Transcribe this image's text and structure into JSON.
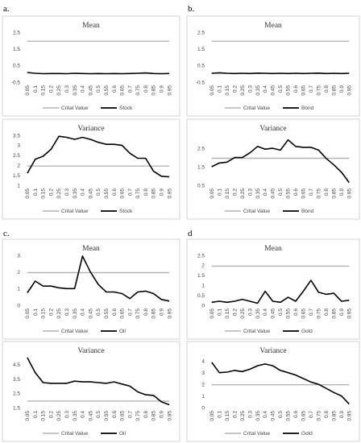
{
  "panels": [
    {
      "label": "a."
    },
    {
      "label": "b."
    },
    {
      "label": "c."
    },
    {
      "label": "d"
    }
  ],
  "colors": {
    "critical": "#b4b4b4",
    "series": "#000000",
    "border": "#c8c8c8"
  },
  "chart_data": [
    {
      "type": "line",
      "panel": "a.",
      "title": "Mean",
      "x": [
        "0.05",
        "0.1",
        "0.15",
        "0.2",
        "0.25",
        "0.3",
        "0.35",
        "0.4",
        "0.45",
        "0.5",
        "0.55",
        "0.6",
        "0.65",
        "0.7",
        "0.75",
        "0.8",
        "0.85",
        "0.9",
        "0.95"
      ],
      "yticks": [
        "-0.5",
        "0.5",
        "1.5",
        "2.5"
      ],
      "ylim": [
        -0.5,
        2.5
      ],
      "series": [
        {
          "name": "Critical Value",
          "legend": "Crital Value",
          "values": [
            1.96,
            1.96,
            1.96,
            1.96,
            1.96,
            1.96,
            1.96,
            1.96,
            1.96,
            1.96,
            1.96,
            1.96,
            1.96,
            1.96,
            1.96,
            1.96,
            1.96,
            1.96,
            1.96
          ]
        },
        {
          "name": "Stock",
          "legend": "Stock",
          "values": [
            0.08,
            0.03,
            0.01,
            0.02,
            0.02,
            0.01,
            0.03,
            0.02,
            0.01,
            0.02,
            0.01,
            0.02,
            0.01,
            0.02,
            0.03,
            0.05,
            0.02,
            0.01,
            0.02
          ]
        }
      ],
      "legend_position": "bottom"
    },
    {
      "type": "line",
      "panel": "b.",
      "title": "Mean",
      "x": [
        "0.05",
        "0.1",
        "0.15",
        "0.2",
        "0.25",
        "0.3",
        "0.35",
        "0.4",
        "0.45",
        "0.5",
        "0.55",
        "0.6",
        "0.65",
        "0.7",
        "0.75",
        "0.8",
        "0.85",
        "0.9",
        "0.95"
      ],
      "yticks": [
        "-0.5",
        "0.5",
        "1.5",
        "2.5"
      ],
      "ylim": [
        -0.5,
        2.5
      ],
      "series": [
        {
          "name": "Critical Value",
          "legend": "Crital Value",
          "values": [
            1.96,
            1.96,
            1.96,
            1.96,
            1.96,
            1.96,
            1.96,
            1.96,
            1.96,
            1.96,
            1.96,
            1.96,
            1.96,
            1.96,
            1.96,
            1.96,
            1.96,
            1.96,
            1.96
          ]
        },
        {
          "name": "Bond",
          "legend": "Bond",
          "values": [
            0.03,
            0.06,
            0.03,
            0.02,
            0.03,
            0.02,
            0.04,
            0.03,
            0.02,
            0.03,
            0.02,
            0.03,
            0.02,
            0.03,
            0.04,
            0.02,
            0.03,
            0.02,
            0.03
          ]
        }
      ],
      "legend_position": "bottom"
    },
    {
      "type": "line",
      "panel": "a.",
      "title": "Variance",
      "x": [
        "0.05",
        "0.1",
        "0.15",
        "0.2",
        "0.25",
        "0.3",
        "0.35",
        "0.4",
        "0.45",
        "0.5",
        "0.55",
        "0.6",
        "0.65",
        "0.7",
        "0.75",
        "0.8",
        "0.85",
        "0.9",
        "0.95"
      ],
      "yticks": [
        "1",
        "1.5",
        "2",
        "2.5",
        "3",
        "3.5"
      ],
      "ylim": [
        1,
        3.5
      ],
      "series": [
        {
          "name": "Critical Value",
          "legend": "Crital Value",
          "values": [
            1.96,
            1.96,
            1.96,
            1.96,
            1.96,
            1.96,
            1.96,
            1.96,
            1.96,
            1.96,
            1.96,
            1.96,
            1.96,
            1.96,
            1.96,
            1.96,
            1.96,
            1.96,
            1.96
          ]
        },
        {
          "name": "Stock",
          "legend": "Stock",
          "values": [
            1.6,
            2.3,
            2.45,
            2.8,
            3.45,
            3.4,
            3.3,
            3.4,
            3.3,
            3.15,
            3.05,
            3.05,
            3.0,
            2.6,
            2.35,
            2.35,
            1.7,
            1.45,
            1.42
          ]
        }
      ],
      "legend_position": "bottom"
    },
    {
      "type": "line",
      "panel": "b.",
      "title": "Variance",
      "x": [
        "0.05",
        "0.1",
        "0.15",
        "0.2",
        "0.25",
        "0.3",
        "0.35",
        "0.4",
        "0.45",
        "0.5",
        "0.55",
        "0.6",
        "0.65",
        "0.7",
        "0.75",
        "0.8",
        "0.85",
        "0.9",
        "0.95"
      ],
      "yticks": [
        "0.5",
        "1.5",
        "2.5"
      ],
      "ylim": [
        0.5,
        3.2
      ],
      "series": [
        {
          "name": "Critical Value",
          "legend": "Crital Value",
          "values": [
            1.96,
            1.96,
            1.96,
            1.96,
            1.96,
            1.96,
            1.96,
            1.96,
            1.96,
            1.96,
            1.96,
            1.96,
            1.96,
            1.96,
            1.96,
            1.96,
            1.96,
            1.96,
            1.96
          ]
        },
        {
          "name": "Bond",
          "legend": "Bond",
          "values": [
            1.5,
            1.7,
            1.75,
            2.0,
            2.0,
            2.25,
            2.6,
            2.45,
            2.5,
            2.4,
            2.95,
            2.6,
            2.55,
            2.55,
            2.4,
            1.95,
            1.6,
            1.2,
            0.65
          ]
        }
      ],
      "legend_position": "bottom"
    },
    {
      "type": "line",
      "panel": "c.",
      "title": "Mean",
      "x": [
        "0.05",
        "0.1",
        "0.15",
        "0.2",
        "0.25",
        "0.3",
        "0.35",
        "0.4",
        "0.45",
        "0.5",
        "0.55",
        "0.6",
        "0.65",
        "0.7",
        "0.75",
        "0.8",
        "0.85",
        "0.9",
        "0.95"
      ],
      "yticks": [
        "0",
        "1",
        "2",
        "3"
      ],
      "ylim": [
        0,
        3
      ],
      "series": [
        {
          "name": "Critical Value",
          "legend": "Crital Value",
          "values": [
            1.96,
            1.96,
            1.96,
            1.96,
            1.96,
            1.96,
            1.96,
            1.96,
            1.96,
            1.96,
            1.96,
            1.96,
            1.96,
            1.96,
            1.96,
            1.96,
            1.96,
            1.96,
            1.96
          ]
        },
        {
          "name": "Oil",
          "legend": "Oil",
          "values": [
            0.75,
            1.45,
            1.15,
            1.15,
            1.05,
            1.0,
            1.0,
            2.95,
            2.0,
            1.25,
            0.8,
            0.8,
            0.7,
            0.4,
            0.8,
            0.85,
            0.7,
            0.35,
            0.25
          ]
        }
      ],
      "legend_position": "bottom"
    },
    {
      "type": "line",
      "panel": "d",
      "title": "Mean",
      "x": [
        "0.05",
        "0.1",
        "0.15",
        "0.2",
        "0.25",
        "0.3",
        "0.35",
        "0.4",
        "0.45",
        "0.5",
        "0.55",
        "0.6",
        "0.65",
        "0.7",
        "0.75",
        "0.8",
        "0.85",
        "0.9",
        "0.95"
      ],
      "yticks": [
        "0",
        "0.5",
        "1",
        "1.5",
        "2",
        "2.5"
      ],
      "ylim": [
        0,
        2.5
      ],
      "series": [
        {
          "name": "Critical Value",
          "legend": "Crital Value",
          "values": [
            1.96,
            1.96,
            1.96,
            1.96,
            1.96,
            1.96,
            1.96,
            1.96,
            1.96,
            1.96,
            1.96,
            1.96,
            1.96,
            1.96,
            1.96,
            1.96,
            1.96,
            1.96,
            1.96
          ]
        },
        {
          "name": "Gold",
          "legend": "Gold",
          "values": [
            0.15,
            0.2,
            0.15,
            0.2,
            0.3,
            0.2,
            0.1,
            0.7,
            0.2,
            0.15,
            0.4,
            0.2,
            0.7,
            1.25,
            0.65,
            0.55,
            0.6,
            0.2,
            0.25
          ]
        }
      ],
      "legend_position": "bottom"
    },
    {
      "type": "line",
      "panel": "c.",
      "title": "Variance",
      "x": [
        "0.05",
        "0.1",
        "0.15",
        "0.2",
        "0.25",
        "0.3",
        "0.35",
        "0.4",
        "0.45",
        "0.5",
        "0.55",
        "0.6",
        "0.65",
        "0.7",
        "0.75",
        "0.8",
        "0.85",
        "0.9",
        "0.95"
      ],
      "yticks": [
        "1.5",
        "2.5",
        "3.5",
        "4.5"
      ],
      "ylim": [
        1.5,
        5
      ],
      "series": [
        {
          "name": "Critical Value",
          "legend": "Crital Value",
          "values": [
            1.96,
            1.96,
            1.96,
            1.96,
            1.96,
            1.96,
            1.96,
            1.96,
            1.96,
            1.96,
            1.96,
            1.96,
            1.96,
            1.96,
            1.96,
            1.96,
            1.96,
            1.96,
            1.96
          ]
        },
        {
          "name": "Oil",
          "legend": "Oil",
          "values": [
            5.0,
            3.95,
            3.25,
            3.2,
            3.2,
            3.2,
            3.35,
            3.3,
            3.3,
            3.25,
            3.2,
            3.3,
            3.15,
            3.0,
            2.6,
            2.4,
            2.35,
            1.9,
            1.7
          ]
        }
      ],
      "legend_position": "bottom"
    },
    {
      "type": "line",
      "panel": "d",
      "title": "Variance",
      "x": [
        "0.05",
        "0.1",
        "0.15",
        "0.2",
        "0.25",
        "0.3",
        "0.35",
        "0.4",
        "0.45",
        "0.5",
        "0.55",
        "0.6",
        "0.65",
        "0.7",
        "0.75",
        "0.8",
        "0.85",
        "0.9",
        "0.95"
      ],
      "yticks": [
        "0",
        "1",
        "2",
        "3",
        "4"
      ],
      "ylim": [
        0,
        4.3
      ],
      "series": [
        {
          "name": "Critical Value",
          "legend": "Crital Value",
          "values": [
            1.96,
            1.96,
            1.96,
            1.96,
            1.96,
            1.96,
            1.96,
            1.96,
            1.96,
            1.96,
            1.96,
            1.96,
            1.96,
            1.96,
            1.96,
            1.96,
            1.96,
            1.96,
            1.96
          ]
        },
        {
          "name": "Gold",
          "legend": "Gold",
          "values": [
            3.9,
            3.0,
            3.05,
            3.2,
            3.1,
            3.3,
            3.6,
            3.75,
            3.6,
            3.2,
            3.0,
            2.8,
            2.5,
            2.2,
            2.0,
            1.65,
            1.3,
            1.0,
            0.3
          ]
        }
      ],
      "legend_position": "bottom"
    }
  ]
}
